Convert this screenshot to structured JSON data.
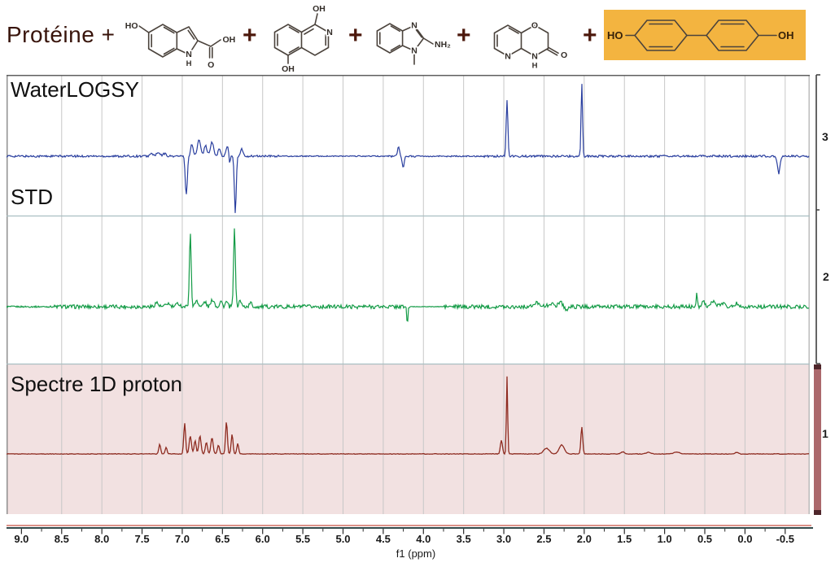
{
  "header": {
    "protein_label": "Protéine +",
    "plus": "+",
    "ligands": [
      {
        "name": "5-hydroxyindole-2-carboxylic acid",
        "labels": {
          "ho": "HO",
          "n": "N",
          "h": "H",
          "oh": "OH",
          "o": "O"
        }
      },
      {
        "name": "1,5-dihydroxyisoquinoline",
        "labels": {
          "oh_top": "OH",
          "n": "N",
          "oh_bottom": "OH"
        }
      },
      {
        "name": "2-amino-1-methylbenzimidazole",
        "labels": {
          "n_top": "N",
          "n_bottom": "N",
          "nh2": "NH₂"
        }
      },
      {
        "name": "pyrido[3,2-b][1,4]oxazin-3-one",
        "labels": {
          "o_top": "O",
          "n_pyridine": "N",
          "n_amide": "N",
          "h": "H",
          "o_carbonyl": "O"
        }
      },
      {
        "name": "4,4'-dihydroxybiphenyl (highlighted hit)",
        "highlight_color": "#f3b440",
        "labels": {
          "ho": "HO",
          "oh": "OH"
        }
      }
    ]
  },
  "panels": [
    {
      "label": "WaterLOGSY",
      "number": "3",
      "trace_color": "#2a3f9f",
      "background": "#ffffff"
    },
    {
      "label": "STD",
      "number": "2",
      "trace_color": "#139b46",
      "background": "#ffffff"
    },
    {
      "label": "Spectre 1D proton",
      "number": "1",
      "trace_color": "#8e2b20",
      "background": "#f2e1e1"
    }
  ],
  "axis": {
    "label": "f1 (ppm)",
    "ticks": [
      "9.0",
      "8.5",
      "8.0",
      "7.5",
      "7.0",
      "6.5",
      "6.0",
      "5.5",
      "5.0",
      "4.5",
      "4.0",
      "3.5",
      "3.0",
      "2.5",
      "2.0",
      "1.5",
      "1.0",
      "0.5",
      "0.0",
      "-0.5"
    ]
  },
  "chart_data": {
    "type": "line",
    "xlabel": "f1 (ppm)",
    "x_range": [
      9.19,
      -0.81
    ],
    "x_ticks": [
      9.0,
      8.5,
      8.0,
      7.5,
      7.0,
      6.5,
      6.0,
      5.5,
      5.0,
      4.5,
      4.0,
      3.5,
      3.0,
      2.5,
      2.0,
      1.5,
      1.0,
      0.5,
      0.0,
      -0.5
    ],
    "grid": true,
    "series": [
      {
        "name": "WaterLOGSY",
        "color": "#2a3f9f",
        "noise": 1.3,
        "quiet": [
          [
            5.8,
            4.45,
            0.5
          ],
          [
            4.1,
            3.25,
            0.6
          ]
        ],
        "peaks_ppm_height_width": [
          [
            7.38,
            3,
            0.03
          ],
          [
            7.3,
            4,
            0.03
          ],
          [
            7.22,
            3,
            0.03
          ],
          [
            6.95,
            -48,
            0.018
          ],
          [
            6.88,
            15,
            0.022
          ],
          [
            6.79,
            20,
            0.03
          ],
          [
            6.71,
            13,
            0.025
          ],
          [
            6.63,
            17,
            0.028
          ],
          [
            6.54,
            9,
            0.022
          ],
          [
            6.44,
            13,
            0.022
          ],
          [
            6.41,
            -10,
            0.012
          ],
          [
            6.34,
            -71,
            0.016
          ],
          [
            6.26,
            9,
            0.02
          ],
          [
            4.31,
            11,
            0.018
          ],
          [
            4.25,
            -13,
            0.018
          ],
          [
            2.96,
            69,
            0.015
          ],
          [
            2.03,
            90,
            0.013
          ],
          [
            -0.42,
            -21,
            0.022
          ]
        ]
      },
      {
        "name": "STD",
        "color": "#139b46",
        "noise": 2.4,
        "quiet": [
          [
            9.2,
            8.6,
            0.4
          ],
          [
            4.17,
            3.75,
            0.12
          ]
        ],
        "peaks_ppm_height_width": [
          [
            7.32,
            5,
            0.03
          ],
          [
            7.18,
            4,
            0.03
          ],
          [
            7.05,
            4,
            0.03
          ],
          [
            6.9,
            89,
            0.016
          ],
          [
            6.82,
            8,
            0.025
          ],
          [
            6.72,
            6,
            0.025
          ],
          [
            6.62,
            9,
            0.028
          ],
          [
            6.52,
            7,
            0.022
          ],
          [
            6.45,
            6,
            0.02
          ],
          [
            6.35,
            96,
            0.016
          ],
          [
            6.28,
            8,
            0.02
          ],
          [
            6.15,
            5,
            0.02
          ],
          [
            4.2,
            -22,
            0.01
          ],
          [
            2.58,
            5,
            0.05
          ],
          [
            2.42,
            4,
            0.04
          ],
          [
            2.3,
            6,
            0.04
          ],
          [
            2.22,
            -4,
            0.03
          ],
          [
            0.6,
            15,
            0.012
          ],
          [
            0.52,
            7,
            0.03
          ],
          [
            0.4,
            6,
            0.04
          ],
          [
            0.28,
            5,
            0.04
          ],
          [
            0.1,
            4,
            0.04
          ]
        ]
      },
      {
        "name": "Spectre 1D proton",
        "color": "#8e2b20",
        "noise": 0.35,
        "quiet": [],
        "peaks_ppm_height_width": [
          [
            7.28,
            12,
            0.016
          ],
          [
            7.2,
            8,
            0.016
          ],
          [
            6.97,
            38,
            0.016
          ],
          [
            6.9,
            22,
            0.02
          ],
          [
            6.84,
            16,
            0.018
          ],
          [
            6.78,
            22,
            0.02
          ],
          [
            6.7,
            14,
            0.018
          ],
          [
            6.63,
            20,
            0.02
          ],
          [
            6.55,
            11,
            0.018
          ],
          [
            6.45,
            40,
            0.016
          ],
          [
            6.38,
            24,
            0.016
          ],
          [
            6.31,
            13,
            0.016
          ],
          [
            3.03,
            17,
            0.018
          ],
          [
            2.96,
            95,
            0.011
          ],
          [
            2.47,
            7,
            0.05
          ],
          [
            2.28,
            11,
            0.045
          ],
          [
            2.03,
            33,
            0.016
          ],
          [
            1.52,
            2.5,
            0.03
          ],
          [
            1.2,
            2,
            0.04
          ],
          [
            0.85,
            2.5,
            0.05
          ],
          [
            0.1,
            2,
            0.03
          ]
        ]
      }
    ]
  }
}
